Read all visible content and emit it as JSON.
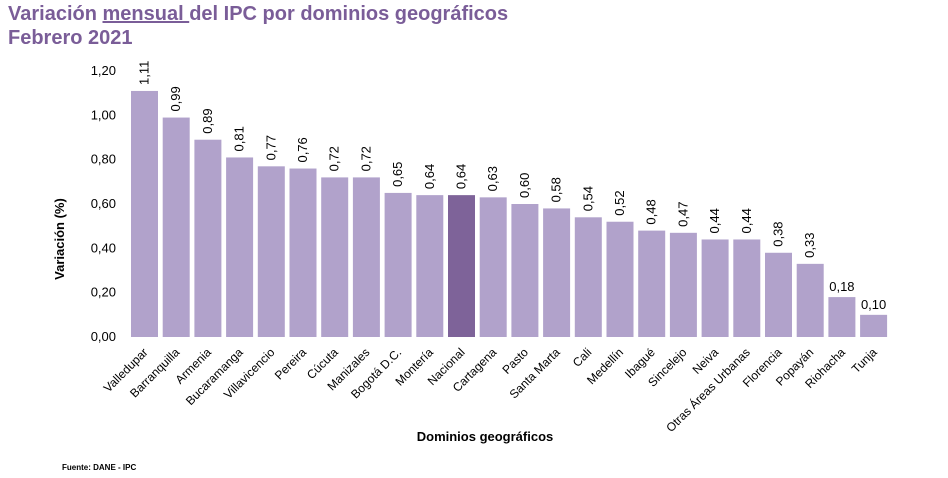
{
  "title": {
    "line1_pre": "Variación ",
    "line1_underlined": "mensual ",
    "line1_post": "del IPC por dominios geográficos",
    "line2": "Febrero 2021"
  },
  "source": "Fuente: DANE - IPC",
  "colors": {
    "bar": "#b1a2cb",
    "highlight": "#7e6399",
    "title": "#7a5d98"
  },
  "chart_data": {
    "type": "bar",
    "xlabel": "Dominios geográficos",
    "ylabel": "Variación (%)",
    "ylim": [
      0,
      1.2
    ],
    "yticks": [
      "0,00",
      "0,20",
      "0,40",
      "0,60",
      "0,80",
      "1,00",
      "1,20"
    ],
    "categories": [
      "Valledupar",
      "Barranquilla",
      "Armenia",
      "Bucaramanga",
      "Villavicencio",
      "Pereira",
      "Cúcuta",
      "Manizales",
      "Bogotá D.C.",
      "Montería",
      "Nacional",
      "Cartagena",
      "Pasto",
      "Santa Marta",
      "Cali",
      "Medellín",
      "Ibagué",
      "Sincelejo",
      "Neiva",
      "Otras Áreas Urbanas",
      "Florencia",
      "Popayán",
      "Riohacha",
      "Tunja"
    ],
    "values": [
      1.11,
      0.99,
      0.89,
      0.81,
      0.77,
      0.76,
      0.72,
      0.72,
      0.65,
      0.64,
      0.64,
      0.63,
      0.6,
      0.58,
      0.54,
      0.52,
      0.48,
      0.47,
      0.44,
      0.44,
      0.38,
      0.33,
      0.18,
      0.1
    ],
    "labels": [
      "1,11",
      "0,99",
      "0,89",
      "0,81",
      "0,77",
      "0,76",
      "0,72",
      "0,72",
      "0,65",
      "0,64",
      "0,64",
      "0,63",
      "0,60",
      "0,58",
      "0,54",
      "0,52",
      "0,48",
      "0,47",
      "0,44",
      "0,44",
      "0,38",
      "0,33",
      "0,18",
      "0,10"
    ],
    "highlight_category": "Nacional",
    "grid": false,
    "legend": "none"
  }
}
